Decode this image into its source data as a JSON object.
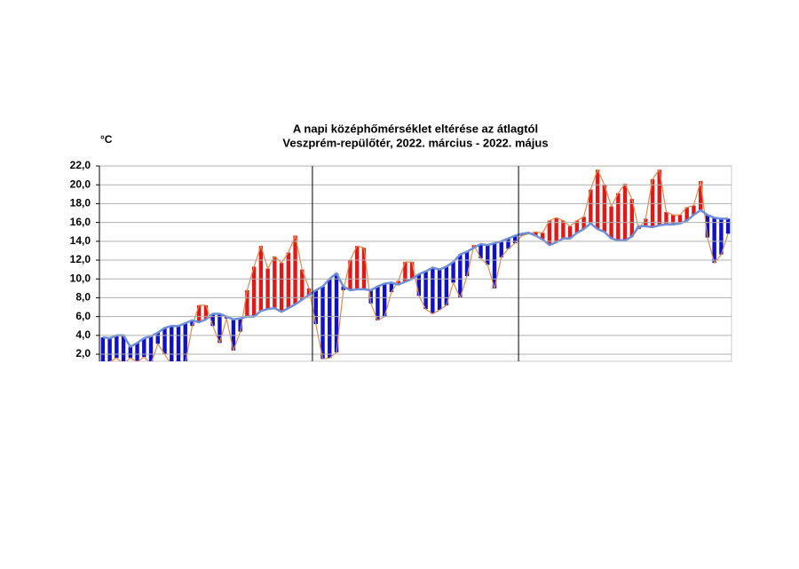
{
  "chart_data": {
    "type": "deviation",
    "title": "A napi középhőmérséklet eltérése az átlagtól",
    "subtitle": "Veszprém-repülőtér, 2022. március - 2022. május",
    "y_label": "°C",
    "ylim": [
      1.25,
      22
    ],
    "yticks": [
      {
        "value": 2,
        "label": "2,0"
      },
      {
        "value": 4,
        "label": "4,0"
      },
      {
        "value": 6,
        "label": "6,0"
      },
      {
        "value": 8,
        "label": "8,0"
      },
      {
        "value": 10,
        "label": "10,0"
      },
      {
        "value": 12,
        "label": "12,0"
      },
      {
        "value": 14,
        "label": "14,0"
      },
      {
        "value": 16,
        "label": "16,0"
      },
      {
        "value": 18,
        "label": "18,0"
      },
      {
        "value": 20,
        "label": "20,0"
      },
      {
        "value": 22,
        "label": "22,0"
      }
    ],
    "grid": true,
    "above_color": "#e01818",
    "below_color": "#1010c8",
    "series": [
      {
        "color": "#6f8fd6",
        "values": [
          3.8,
          3.7,
          4.0,
          4.0,
          2.8,
          3.2,
          3.7,
          3.9,
          4.3,
          4.8,
          5.0,
          5.0,
          5.3,
          5.6,
          5.4,
          5.7,
          6.3,
          6.3,
          6.0,
          5.7,
          5.8,
          6.0,
          6.0,
          6.6,
          6.8,
          6.9,
          6.5,
          6.9,
          7.3,
          7.8,
          8.3,
          8.8,
          9.2,
          10.0,
          10.6,
          9.2,
          8.8,
          8.9,
          8.9,
          8.8,
          9.2,
          9.5,
          9.6,
          9.4,
          9.7,
          10.0,
          10.5,
          10.8,
          11.2,
          11.0,
          11.3,
          11.8,
          12.6,
          12.9,
          13.3,
          13.7,
          13.6,
          13.8,
          14.0,
          14.3,
          14.6,
          14.8,
          14.9,
          14.6,
          14.2,
          13.6,
          13.9,
          14.3,
          14.3,
          14.9,
          15.3,
          15.9,
          15.3,
          15.0,
          14.3,
          14.1,
          14.1,
          14.5,
          15.6,
          15.6,
          15.5,
          15.7,
          15.8,
          15.8,
          15.9,
          16.2,
          16.8,
          17.3,
          16.8,
          16.5,
          16.4,
          16.4
        ]
      },
      {
        "color": "#e08a4a",
        "values": [
          1.0,
          1.2,
          1.6,
          1.0,
          1.6,
          1.2,
          1.7,
          1.0,
          3.1,
          2.0,
          0.8,
          1.2,
          1.0,
          5.0,
          7.2,
          7.2,
          5.0,
          3.2,
          5.8,
          2.4,
          4.4,
          8.8,
          11.3,
          13.5,
          11.1,
          12.4,
          11.7,
          12.8,
          14.6,
          11.0,
          9.0,
          5.2,
          1.5,
          1.6,
          2.2,
          8.8,
          12.0,
          13.5,
          13.3,
          7.4,
          5.6,
          6.0,
          8.6,
          9.8,
          11.8,
          11.8,
          8.2,
          6.8,
          6.3,
          6.7,
          7.2,
          9.6,
          8.0,
          10.3,
          13.6,
          12.2,
          11.5,
          9.0,
          12.3,
          13.2,
          13.8,
          14.6,
          14.8,
          15.0,
          14.9,
          16.2,
          16.5,
          16.2,
          15.6,
          16.2,
          16.6,
          19.5,
          21.6,
          20.0,
          17.7,
          19.1,
          20.1,
          18.5,
          15.3,
          16.4,
          20.6,
          21.6,
          17.1,
          16.8,
          16.8,
          17.6,
          17.8,
          20.4,
          14.4,
          11.7,
          12.6,
          14.8
        ]
      }
    ]
  }
}
